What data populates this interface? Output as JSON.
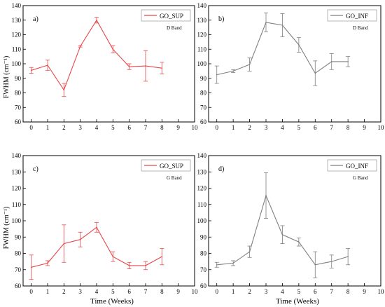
{
  "figure": {
    "ylabel": "FWHM (cm⁻¹)",
    "xlabel": "Time (Weeks)"
  },
  "chart_data": [
    {
      "type": "line",
      "panel_label": "a)",
      "legend": "GO_SUP",
      "band_label": "D Band",
      "color": "#e8474a",
      "x": [
        0,
        1,
        2,
        3,
        4,
        5,
        6,
        7,
        8
      ],
      "values": [
        95.5,
        99,
        82,
        112,
        130,
        110,
        98,
        98.5,
        97
      ],
      "errors": [
        2,
        3.5,
        4.5,
        0.5,
        2,
        2.5,
        2,
        10.5,
        4
      ],
      "xlim": [
        -0.5,
        10
      ],
      "ylim": [
        60,
        140
      ],
      "xticks": [
        0,
        1,
        2,
        3,
        4,
        5,
        6,
        7,
        8,
        9,
        10
      ],
      "yticks": [
        60,
        70,
        80,
        90,
        100,
        110,
        120,
        130,
        140
      ]
    },
    {
      "type": "line",
      "panel_label": "b)",
      "legend": "GO_INF",
      "band_label": "D Band",
      "color": "#7f7f7f",
      "x": [
        0,
        1,
        2,
        3,
        4,
        5,
        6,
        7,
        8
      ],
      "values": [
        92.5,
        95,
        99.5,
        128.5,
        126.5,
        113,
        93.5,
        101.5,
        101.5
      ],
      "errors": [
        6,
        1,
        4.5,
        6.5,
        8,
        5,
        8.5,
        5.5,
        3.5
      ],
      "xlim": [
        -0.5,
        10
      ],
      "ylim": [
        60,
        140
      ],
      "xticks": [
        0,
        1,
        2,
        3,
        4,
        5,
        6,
        7,
        8,
        9,
        10
      ],
      "yticks": [
        60,
        70,
        80,
        90,
        100,
        110,
        120,
        130,
        140
      ]
    },
    {
      "type": "line",
      "panel_label": "c)",
      "legend": "GO_SUP",
      "band_label": "G Band",
      "color": "#e8474a",
      "x": [
        0,
        1,
        2,
        3,
        4,
        5,
        6,
        7,
        8
      ],
      "values": [
        71.5,
        74,
        86,
        88.5,
        96,
        78,
        72.5,
        72.5,
        78
      ],
      "errors": [
        7.5,
        1.5,
        11.5,
        4.5,
        3,
        3,
        2,
        2.5,
        5
      ],
      "xlim": [
        -0.5,
        10
      ],
      "ylim": [
        60,
        140
      ],
      "xticks": [
        0,
        1,
        2,
        3,
        4,
        5,
        6,
        7,
        8,
        9,
        10
      ],
      "yticks": [
        60,
        70,
        80,
        90,
        100,
        110,
        120,
        130,
        140
      ]
    },
    {
      "type": "line",
      "panel_label": "d)",
      "legend": "GO_INF",
      "band_label": "G Band",
      "color": "#7f7f7f",
      "x": [
        0,
        1,
        2,
        3,
        4,
        5,
        6,
        7,
        8
      ],
      "values": [
        73,
        74,
        81,
        115.5,
        91.5,
        87,
        73,
        75,
        78
      ],
      "errors": [
        1.5,
        1.5,
        3.5,
        14,
        5.5,
        2.5,
        8,
        4,
        5
      ],
      "xlim": [
        -0.5,
        10
      ],
      "ylim": [
        60,
        140
      ],
      "xticks": [
        0,
        1,
        2,
        3,
        4,
        5,
        6,
        7,
        8,
        9,
        10
      ],
      "yticks": [
        60,
        70,
        80,
        90,
        100,
        110,
        120,
        130,
        140
      ]
    }
  ]
}
